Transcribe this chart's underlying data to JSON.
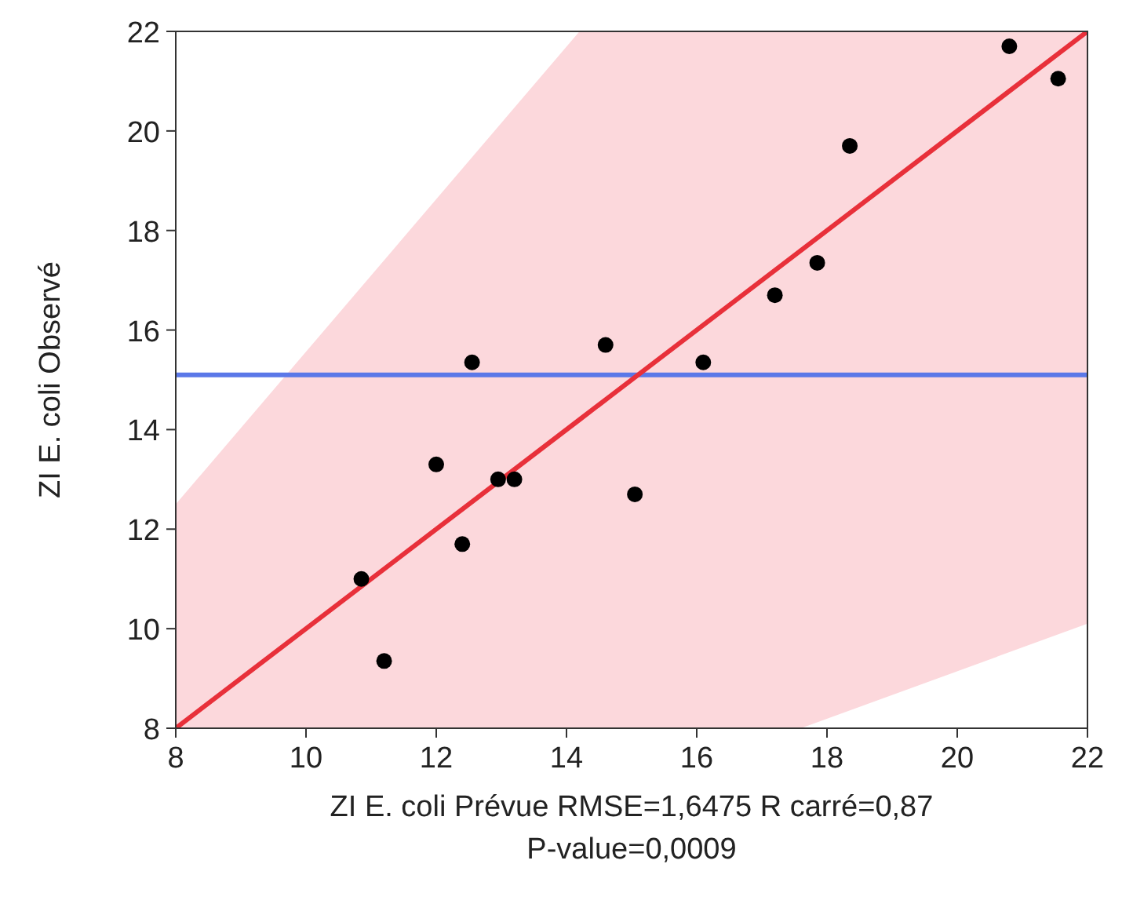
{
  "chart_data": {
    "type": "scatter",
    "xlabel": "ZI E. coli Prévue RMSE=1,6475 R carré=0,87 P-value=0,0009",
    "ylabel": "ZI E. coli Observé",
    "xlim": [
      8,
      22
    ],
    "ylim": [
      8,
      22
    ],
    "xticks": [
      8,
      10,
      12,
      14,
      16,
      18,
      20,
      22
    ],
    "yticks": [
      8,
      10,
      12,
      14,
      16,
      18,
      20,
      22
    ],
    "ref_lines": [
      {
        "axis": "y",
        "value": 15.1,
        "color": "#5b78e8"
      }
    ],
    "series": [
      {
        "type": "line",
        "color": "#e8303a",
        "x": [
          8,
          14.2,
          17.6,
          22
        ],
        "values": [
          8,
          14.2,
          17.6,
          22
        ],
        "lower": [
          8,
          8,
          8,
          10.1
        ],
        "upper": [
          12.5,
          22,
          22,
          22
        ]
      },
      {
        "color": "#000000",
        "marker": "circle",
        "x": [
          10.85,
          11.2,
          12.0,
          12.4,
          12.55,
          12.95,
          13.2,
          14.6,
          15.05,
          16.1,
          17.2,
          17.85,
          18.35,
          20.8,
          21.55
        ],
        "values": [
          11.0,
          9.35,
          13.3,
          11.7,
          15.35,
          13.0,
          13.0,
          15.7,
          12.7,
          15.35,
          16.7,
          17.35,
          19.7,
          21.7,
          21.05
        ]
      }
    ]
  }
}
